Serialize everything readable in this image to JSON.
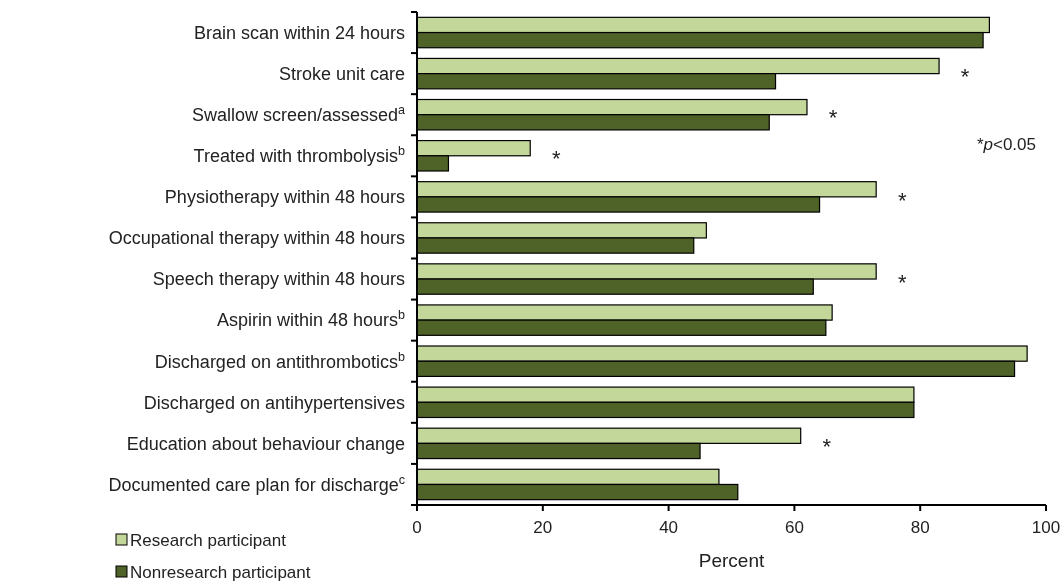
{
  "chart_data": {
    "type": "bar",
    "orientation": "horizontal",
    "xlabel": "Percent",
    "categories": [
      "Brain scan within 24 hours",
      "Stroke unit care",
      "Swallow screen/assessed$^{a}$",
      "Treated with thrombolysis$^{b}$",
      "Physiotherapy within 48 hours",
      "Occupational therapy within 48 hours",
      "Speech therapy within 48 hours",
      "Aspirin within 48 hours$^{b}$",
      "Discharged on antithrombotics$^{b}$",
      "Discharged on antihypertensives",
      "Education about behaviour change",
      "Documented care plan for discharge$^{c}$"
    ],
    "series": [
      {
        "name": "Research participant",
        "color": "#c4d79b",
        "values": [
          91,
          83,
          62,
          18,
          73,
          46,
          73,
          66,
          97,
          79,
          61,
          48
        ]
      },
      {
        "name": "Nonresearch participant",
        "color": "#4f6228",
        "values": [
          90,
          57,
          56,
          5,
          64,
          44,
          63,
          65,
          95,
          79,
          45,
          51
        ]
      }
    ],
    "xlim": [
      0,
      100
    ],
    "xticks": [
      0,
      20,
      40,
      60,
      80,
      100
    ],
    "grid": false,
    "legend": "bottom left",
    "annotations": [
      {
        "text": "*",
        "x": 83,
        "y": "Stroke unit care"
      },
      {
        "text": "*",
        "x": 62,
        "y": "Swallow screen/assessed$^{a}$"
      },
      {
        "text": "*",
        "x": 18,
        "y": "Treated with thrombolysis$^{b}$"
      },
      {
        "text": "*",
        "x": 73,
        "y": "Physiotherapy within 48 hours"
      },
      {
        "text": "*",
        "x": 73,
        "y": "Speech therapy within 48 hours"
      },
      {
        "text": "*",
        "x": 61,
        "y": "Education about behaviour change"
      },
      "*p<0.05"
    ]
  }
}
